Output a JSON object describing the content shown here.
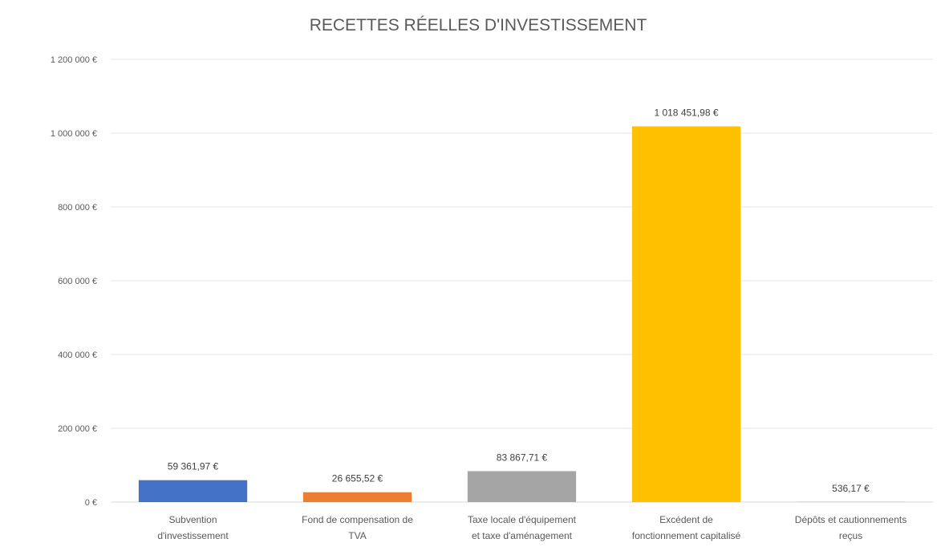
{
  "chart_data": {
    "type": "bar",
    "title": "RECETTES RÉELLES D'INVESTISSEMENT",
    "xlabel": "",
    "ylabel": "",
    "ylim": [
      0,
      1200000
    ],
    "yticks": [
      0,
      200000,
      400000,
      600000,
      800000,
      1000000,
      1200000
    ],
    "ytick_labels": [
      "0 €",
      "200 000 €",
      "400 000 €",
      "600 000 €",
      "800 000 €",
      "1 000 000 €",
      "1 200 000 €"
    ],
    "grid": true,
    "legend": "none",
    "categories": [
      [
        "Subvention",
        "d'investissement"
      ],
      [
        "Fond de compensation de",
        "TVA"
      ],
      [
        "Taxe locale d'équipement",
        "et taxe d'aménagement"
      ],
      [
        "Excédent de",
        "fonctionnement capitalisé"
      ],
      [
        "Dépôts et cautionnements",
        "reçus"
      ]
    ],
    "values": [
      59361.97,
      26655.52,
      83867.71,
      1018451.98,
      536.17
    ],
    "data_labels": [
      "59 361,97 €",
      "26 655,52 €",
      "83 867,71 €",
      "1 018 451,98 €",
      "536,17 €"
    ],
    "colors": [
      "#4472c4",
      "#ed7d31",
      "#a5a5a5",
      "#ffc000",
      "#5b9bd5"
    ]
  }
}
